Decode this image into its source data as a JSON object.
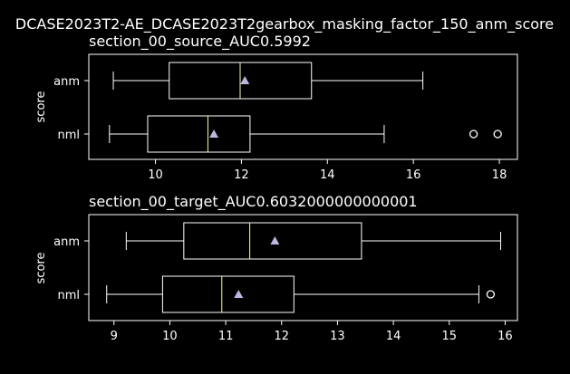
{
  "figure": {
    "title": "DCASE2023T2-AE_DCASE2023T2gearbox_masking_factor_150_anm_score",
    "background": "#000000",
    "foreground": "#ffffff",
    "median_color": "#ffff99",
    "mean_marker_color": "#bcb5e0"
  },
  "chart_data": [
    {
      "type": "box",
      "orientation": "horizontal",
      "title": "section_00_source_AUC0.5992",
      "xlabel": "",
      "ylabel": "score",
      "categories": [
        "anm",
        "nml"
      ],
      "xlim": [
        8.45,
        18.42
      ],
      "xticks": [
        10,
        12,
        14,
        16,
        18
      ],
      "xtick_labels": [
        "10",
        "12",
        "14",
        "16",
        "18"
      ],
      "grid": false,
      "boxes": [
        {
          "label": "anm",
          "whisker_low": 9.02,
          "q1": 10.32,
          "median": 11.97,
          "q3": 13.63,
          "whisker_high": 16.22,
          "mean": 12.08,
          "outliers": []
        },
        {
          "label": "nml",
          "whisker_low": 8.93,
          "q1": 9.82,
          "median": 11.22,
          "q3": 12.2,
          "whisker_high": 15.32,
          "mean": 11.36,
          "outliers": [
            17.4,
            17.96
          ]
        }
      ]
    },
    {
      "type": "box",
      "orientation": "horizontal",
      "title": "section_00_target_AUC0.6032000000000001",
      "xlabel": "",
      "ylabel": "score",
      "categories": [
        "anm",
        "nml"
      ],
      "xlim": [
        8.55,
        16.22
      ],
      "xticks": [
        9,
        10,
        11,
        12,
        13,
        14,
        15,
        16
      ],
      "xtick_labels": [
        "9",
        "10",
        "11",
        "12",
        "13",
        "14",
        "15",
        "16"
      ],
      "grid": false,
      "boxes": [
        {
          "label": "anm",
          "whisker_low": 9.22,
          "q1": 10.25,
          "median": 11.43,
          "q3": 13.43,
          "whisker_high": 15.92,
          "mean": 11.88,
          "outliers": []
        },
        {
          "label": "nml",
          "whisker_low": 8.87,
          "q1": 9.87,
          "median": 10.93,
          "q3": 12.22,
          "whisker_high": 15.53,
          "mean": 11.23,
          "outliers": [
            15.74
          ]
        }
      ]
    }
  ]
}
